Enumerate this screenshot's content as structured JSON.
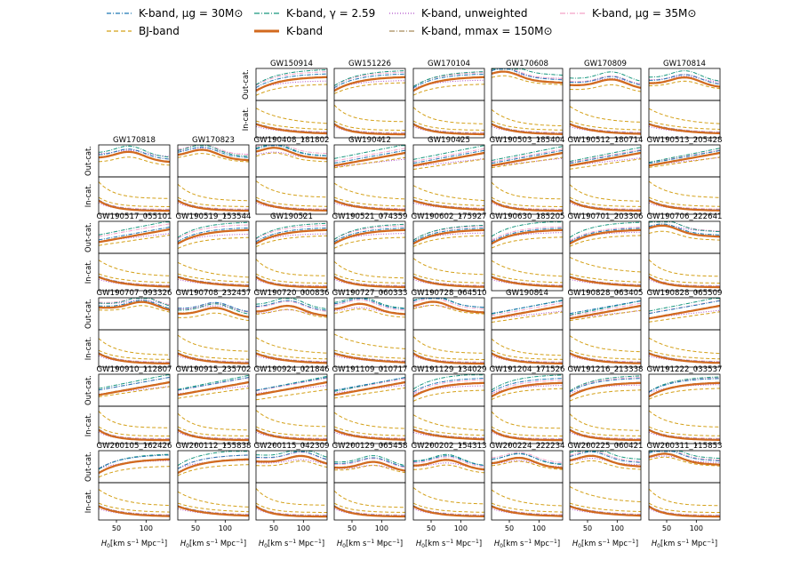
{
  "chart_data": {
    "type": "line",
    "title": "",
    "xlabel": "H0 [km s^-1 Mpc^-1]",
    "xlabel_parts": {
      "main": "H",
      "sub": "0",
      "rest": "[km s",
      "exp1": "−1",
      "mid": " Mpc",
      "exp2": "−1",
      "close": "]"
    },
    "xlim": [
      20,
      140
    ],
    "xticks": [
      50,
      100
    ],
    "xtick_labels": [
      "50",
      "100"
    ],
    "row_labels": {
      "top": "Out-cat.",
      "bottom": "In-cat."
    },
    "series": [
      {
        "name": "K-band, μg = 30M⊙",
        "color": "#1f77b4",
        "style": "dashdot"
      },
      {
        "name": "BJ-band",
        "color": "#d4a017",
        "style": "dashed"
      },
      {
        "name": "K-band, γ = 2.59",
        "color": "#17977e",
        "style": "dashdot"
      },
      {
        "name": "K-band",
        "color": "#d2691e",
        "style": "solid"
      },
      {
        "name": "K-band, unweighted",
        "color": "#b04fc9",
        "style": "dotted"
      },
      {
        "name": "K-band, mmax = 150M⊙",
        "color": "#a88a5a",
        "style": "dashdot"
      },
      {
        "name": "K-band, μg = 35M⊙",
        "color": "#f4a0c8",
        "style": "dashdot"
      }
    ],
    "events": [
      "GW150914",
      "GW151226",
      "GW170104",
      "GW170608",
      "GW170809",
      "GW170814",
      "GW170818",
      "GW170823",
      "GW190408_181802",
      "GW190412",
      "GW190425",
      "GW190503_185404",
      "GW190512_180714",
      "GW190513_205428",
      "GW190517_055101",
      "GW190519_153544",
      "GW190521",
      "GW190521_074359",
      "GW190602_175927",
      "GW190630_185205",
      "GW190701_203306",
      "GW190706_222641",
      "GW190707_093326",
      "GW190708_232457",
      "GW190720_000836",
      "GW190727_060333",
      "GW190728_064510",
      "GW190814",
      "GW190828_063405",
      "GW190828_065509",
      "GW190910_112807",
      "GW190915_235702",
      "GW190924_021846",
      "GW191109_010717",
      "GW191129_134029",
      "GW191204_171526",
      "GW191216_213338",
      "GW191222_033537",
      "GW200105_162426",
      "GW200112_155838",
      "GW200115_042309",
      "GW200129_065458",
      "GW200202_154313",
      "GW200224_222234",
      "GW200225_060421",
      "GW200311_115853"
    ]
  },
  "legend": {
    "items": [
      {
        "label": "K-band, μg = 30M⊙",
        "color": "#1f77b4",
        "dash": "5,2,1,2",
        "width": 1.3
      },
      {
        "label": "BJ-band",
        "color": "#d4a017",
        "dash": "5,3",
        "width": 1.3
      },
      {
        "label": "K-band, γ = 2.59",
        "color": "#17977e",
        "dash": "6,2,1,2",
        "width": 1.3
      },
      {
        "label": "K-band",
        "color": "#d2691e",
        "dash": "",
        "width": 3
      },
      {
        "label": "K-band, unweighted",
        "color": "#b04fc9",
        "dash": "1,2",
        "width": 1.3
      },
      {
        "label": "K-band, mmax = 150M⊙",
        "color": "#a88a5a",
        "dash": "6,2,1,2",
        "width": 1.3
      },
      {
        "label": "K-band, μg = 35M⊙",
        "color": "#f4a0c8",
        "dash": "6,2,1,2",
        "width": 1.3
      }
    ]
  }
}
